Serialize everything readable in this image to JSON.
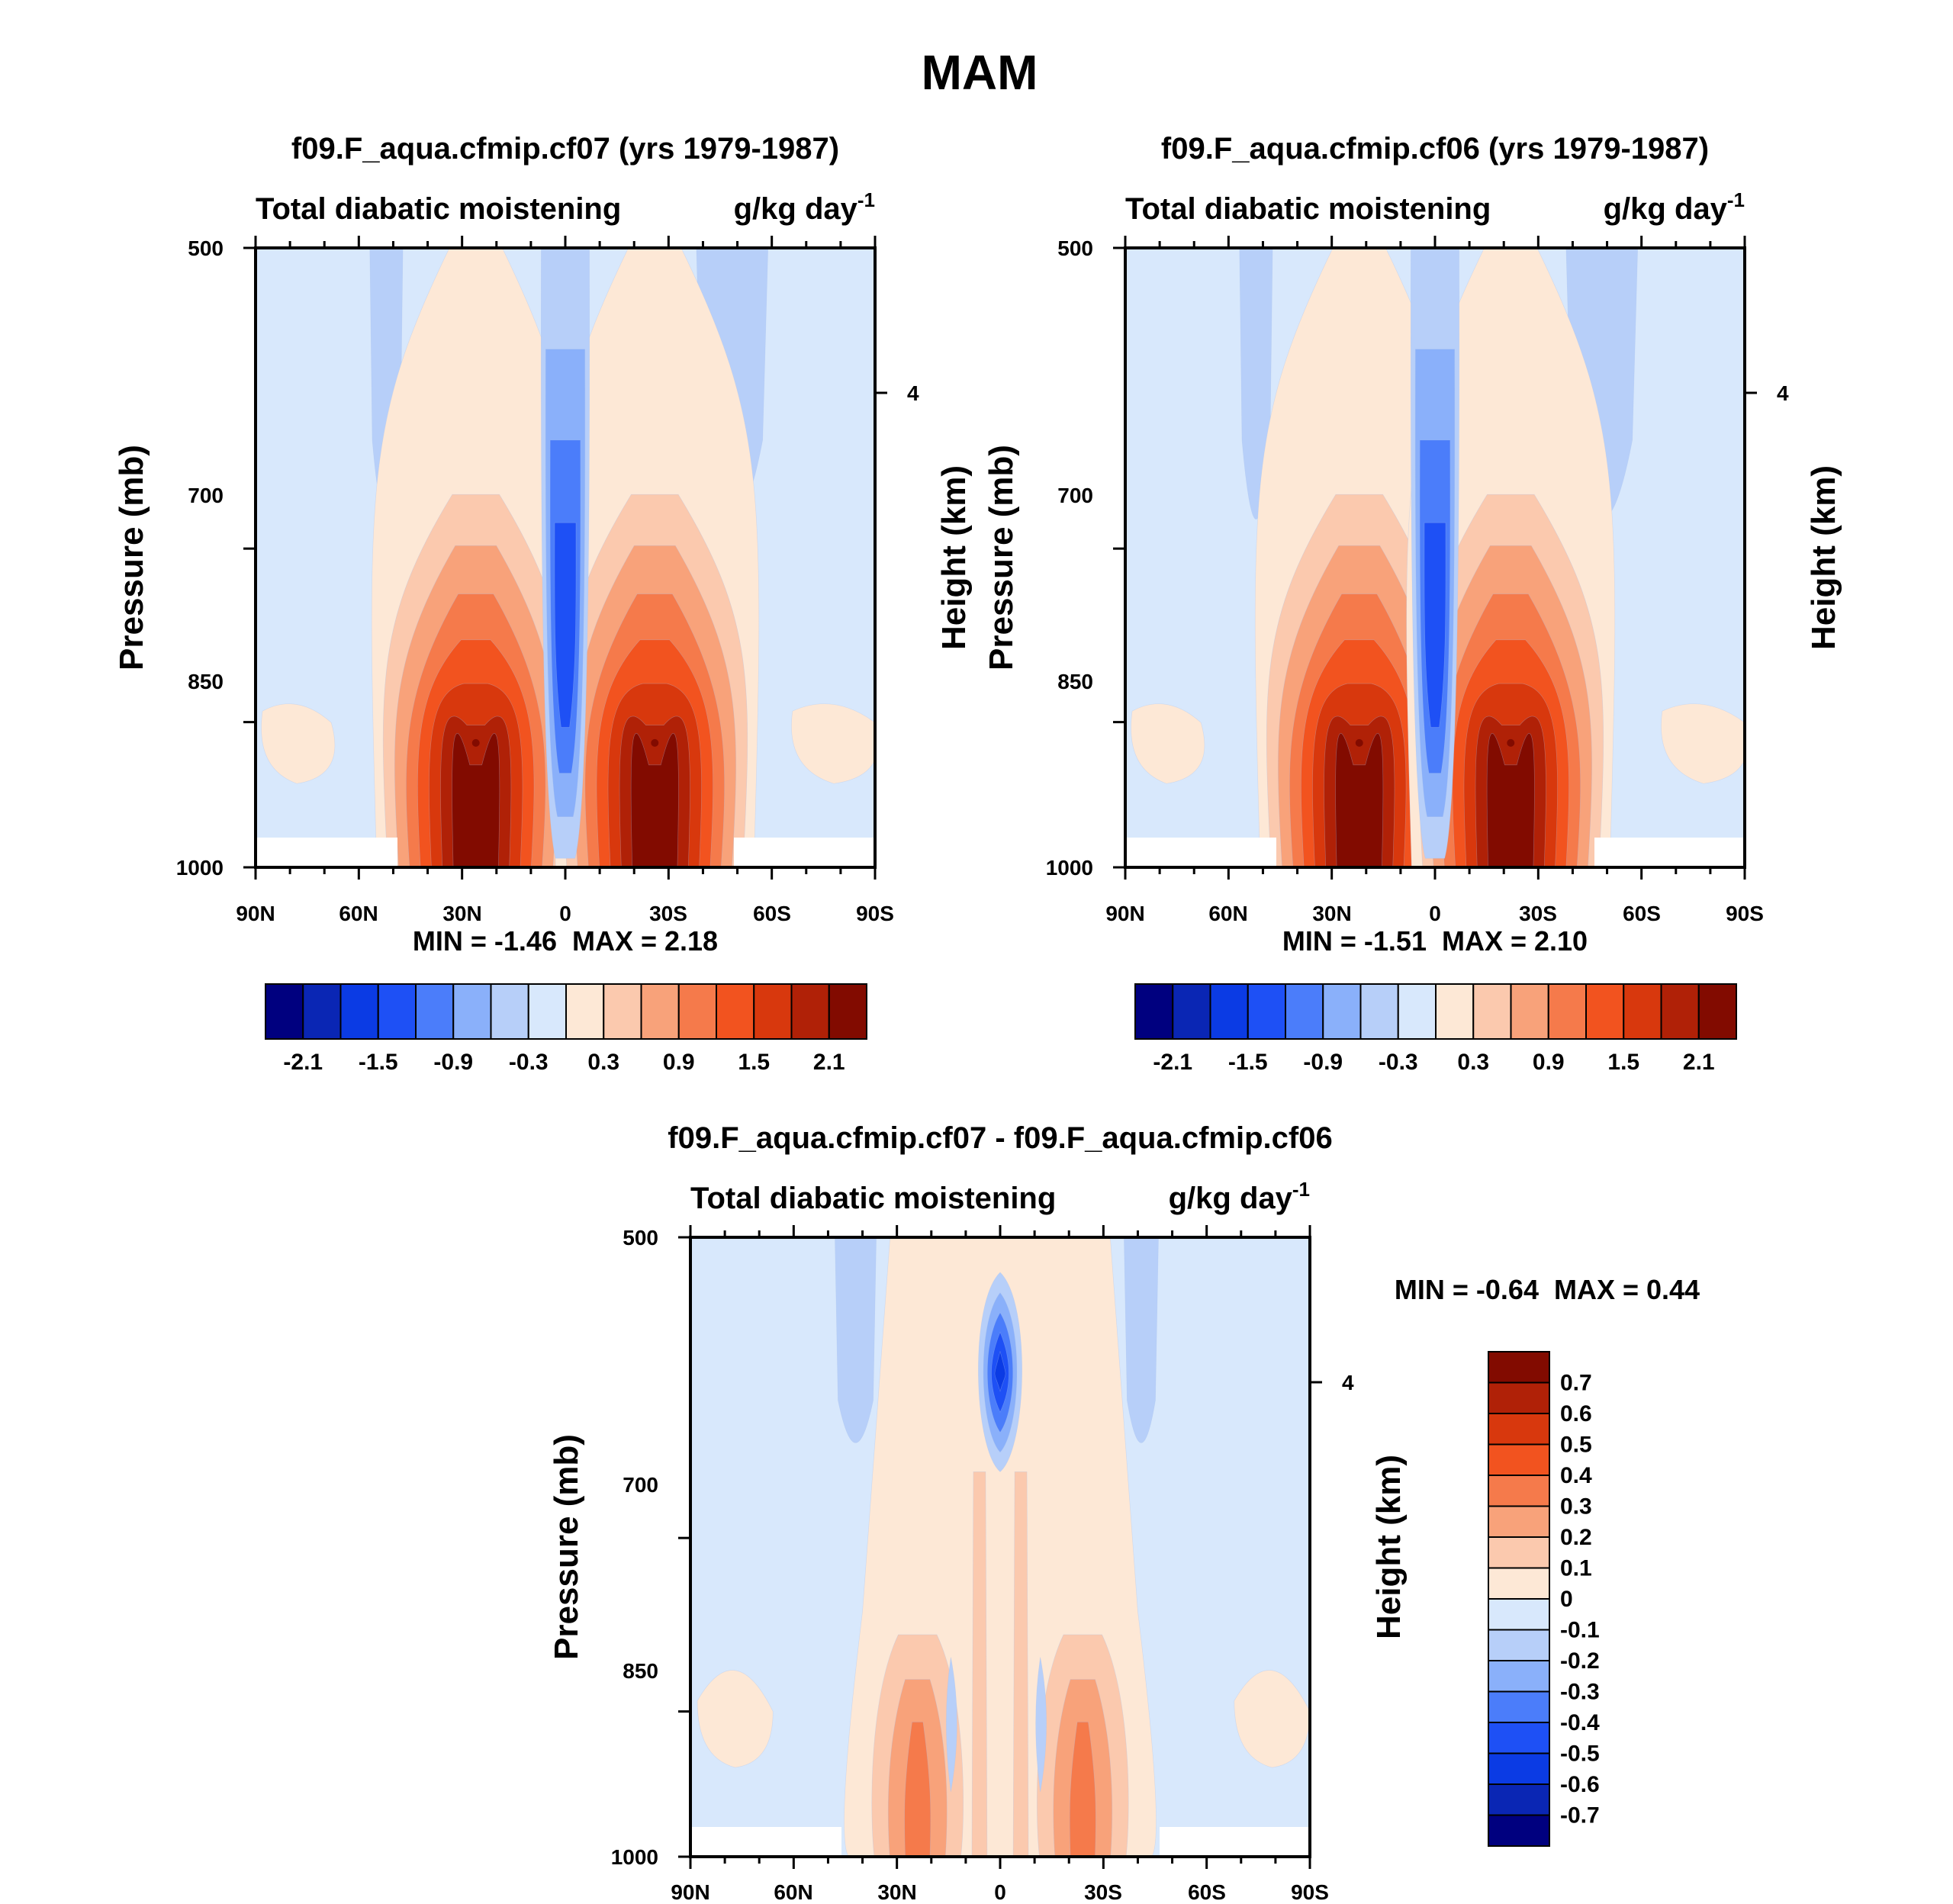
{
  "figure_title": "MAM",
  "chart_data": [
    {
      "type": "contour",
      "title": "f09.F_aqua.cfmip.cf07 (yrs 1979-1987)",
      "left_label": "Total diabatic moistening",
      "units": "g/kg day",
      "units_exp": "-1",
      "ylabel": "Pressure (mb)",
      "ylabel_right": "Height (km)",
      "ylim": [
        1000,
        500
      ],
      "yticks": [
        "500",
        "700",
        "850",
        "1000"
      ],
      "right_ticks": [
        "4"
      ],
      "xticks": [
        "90N",
        "60N",
        "30N",
        "0",
        "30S",
        "60S",
        "90S"
      ],
      "min_label": "MIN = ",
      "min_value": "-1.46",
      "max_label": "MAX = ",
      "max_value": "2.18",
      "colorbar_labels": [
        "-2.1",
        "-1.5",
        "-0.9",
        "-0.3",
        "0.3",
        "0.9",
        "1.5",
        "2.1"
      ],
      "colors": [
        "#00007f",
        "#0a26b4",
        "#0b3be4",
        "#1e50f5",
        "#4b7dfa",
        "#8ab0fa",
        "#b7cff9",
        "#d8e8fc",
        "#fde8d6",
        "#fbc9ae",
        "#f8a27a",
        "#f57a4b",
        "#f2531f",
        "#d8380d",
        "#b02107",
        "#820b00"
      ],
      "peaks": {
        "north_max_lat": -26,
        "south_max_lat": 26,
        "max": 2.18,
        "min": -1.46,
        "min_lat": 0
      }
    },
    {
      "type": "contour",
      "title": "f09.F_aqua.cfmip.cf06 (yrs 1979-1987)",
      "left_label": "Total diabatic moistening",
      "units": "g/kg day",
      "units_exp": "-1",
      "ylabel": "Pressure (mb)",
      "ylabel_right": "Height (km)",
      "ylim": [
        1000,
        500
      ],
      "yticks": [
        "500",
        "700",
        "850",
        "1000"
      ],
      "right_ticks": [
        "4"
      ],
      "xticks": [
        "90N",
        "60N",
        "30N",
        "0",
        "30S",
        "60S",
        "90S"
      ],
      "min_label": "MIN = ",
      "min_value": "-1.51",
      "max_label": "MAX = ",
      "max_value": "2.10",
      "colorbar_labels": [
        "-2.1",
        "-1.5",
        "-0.9",
        "-0.3",
        "0.3",
        "0.9",
        "1.5",
        "2.1"
      ],
      "colors": [
        "#00007f",
        "#0a26b4",
        "#0b3be4",
        "#1e50f5",
        "#4b7dfa",
        "#8ab0fa",
        "#b7cff9",
        "#d8e8fc",
        "#fde8d6",
        "#fbc9ae",
        "#f8a27a",
        "#f57a4b",
        "#f2531f",
        "#d8380d",
        "#b02107",
        "#820b00"
      ],
      "peaks": {
        "north_max_lat": -22,
        "south_max_lat": 22,
        "max": 2.1,
        "min": -1.51,
        "min_lat": 0
      }
    },
    {
      "type": "contour",
      "title": "f09.F_aqua.cfmip.cf07 - f09.F_aqua.cfmip.cf06",
      "left_label": "Total diabatic moistening",
      "units": "g/kg day",
      "units_exp": "-1",
      "ylabel": "Pressure (mb)",
      "ylabel_right": "Height (km)",
      "ylim": [
        1000,
        500
      ],
      "yticks": [
        "500",
        "700",
        "850",
        "1000"
      ],
      "right_ticks": [
        "4"
      ],
      "xticks": [
        "90N",
        "60N",
        "30N",
        "0",
        "30S",
        "60S",
        "90S"
      ],
      "min_label": "MIN = ",
      "min_value": "-0.64",
      "max_label": "MAX = ",
      "max_value": "0.44",
      "colorbar_labels": [
        "0.7",
        "0.6",
        "0.5",
        "0.4",
        "0.3",
        "0.2",
        "0.1",
        "0",
        "-0.1",
        "-0.2",
        "-0.3",
        "-0.4",
        "-0.5",
        "-0.6",
        "-0.7"
      ],
      "colors": [
        "#820b00",
        "#b02107",
        "#d8380d",
        "#f2531f",
        "#f57a4b",
        "#f8a27a",
        "#fbc9ae",
        "#fde8d6",
        "#d8e8fc",
        "#b7cff9",
        "#8ab0fa",
        "#4b7dfa",
        "#1e50f5",
        "#0b3be4",
        "#0a26b4",
        "#00007f"
      ]
    }
  ]
}
